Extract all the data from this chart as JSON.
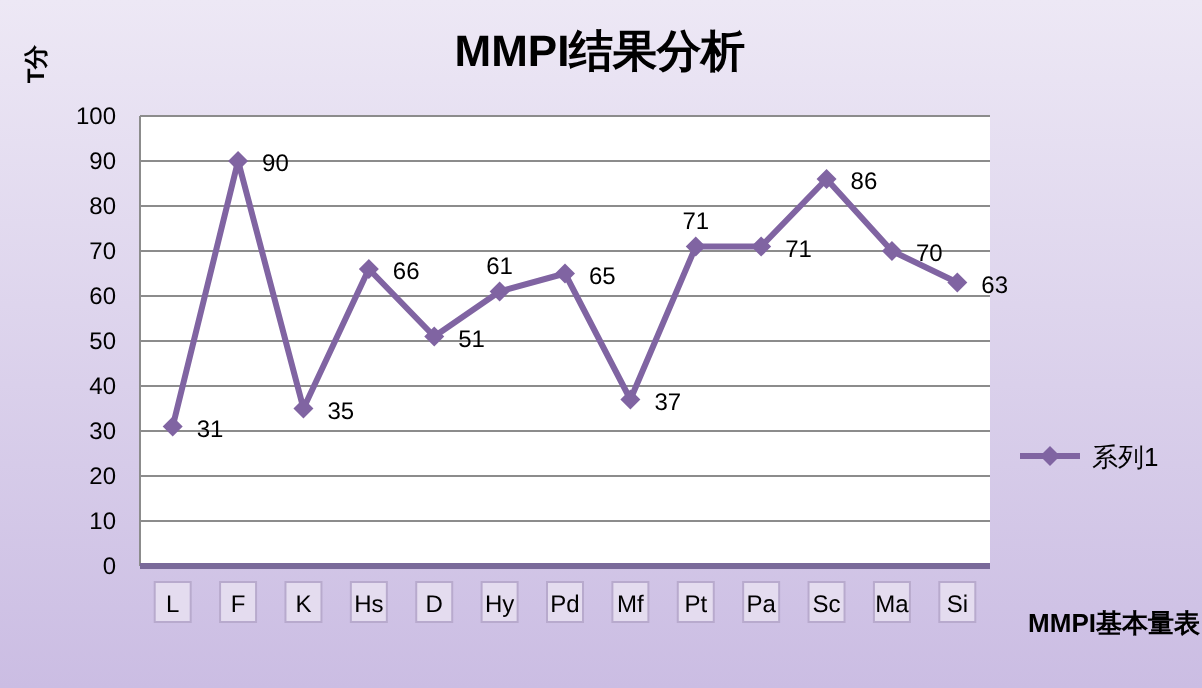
{
  "chart_data": {
    "type": "line",
    "title": "MMPI结果分析",
    "ylabel": "T分",
    "xlabel": "MMPI基本量表",
    "categories": [
      "L",
      "F",
      "K",
      "Hs",
      "D",
      "Hy",
      "Pd",
      "Mf",
      "Pt",
      "Pa",
      "Sc",
      "Ma",
      "Si"
    ],
    "series": [
      {
        "name": "系列1",
        "color": "#8064a2",
        "values": [
          31,
          90,
          35,
          66,
          51,
          61,
          65,
          37,
          71,
          71,
          86,
          70,
          63
        ]
      }
    ],
    "ylim": [
      0,
      100
    ],
    "yticks": [
      0,
      10,
      20,
      30,
      40,
      50,
      60,
      70,
      80,
      90,
      100
    ],
    "grid": "y",
    "legend": "right",
    "marker": "diamond",
    "line_style": "solid",
    "data_labels": true
  }
}
